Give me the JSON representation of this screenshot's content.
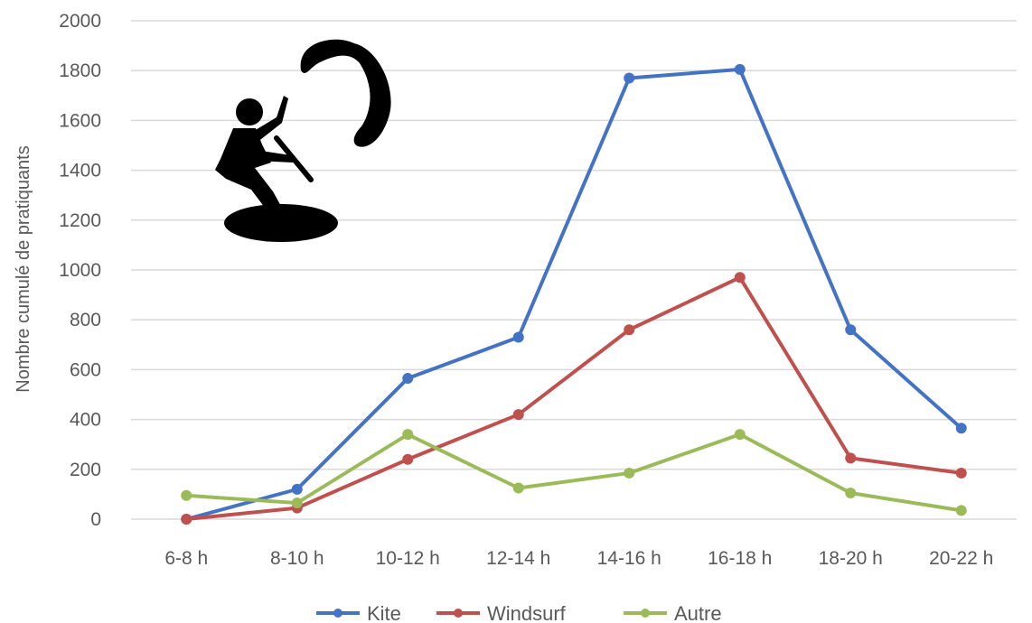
{
  "chart_data": {
    "type": "line",
    "title": "",
    "xlabel": "",
    "ylabel": "Nombre cumulé de pratiquants",
    "ylim": [
      0,
      2000
    ],
    "yticks": [
      0,
      200,
      400,
      600,
      800,
      1000,
      1200,
      1400,
      1600,
      1800,
      2000
    ],
    "grid": true,
    "legend": "bottom",
    "categories": [
      "6-8 h",
      "8-10 h",
      "10-12 h",
      "12-14 h",
      "14-16 h",
      "16-18 h",
      "18-20 h",
      "20-22 h"
    ],
    "series": [
      {
        "name": "Kite",
        "color": "#4472C4",
        "values": [
          0,
          120,
          565,
          730,
          1770,
          1805,
          760,
          365
        ]
      },
      {
        "name": "Windsurf",
        "color": "#C0504D",
        "values": [
          0,
          45,
          240,
          420,
          760,
          970,
          245,
          185
        ]
      },
      {
        "name": "Autre",
        "color": "#9BBB59",
        "values": [
          95,
          65,
          340,
          125,
          185,
          340,
          105,
          35
        ]
      }
    ]
  },
  "illustration": {
    "icon": "kitesurfer-icon"
  }
}
